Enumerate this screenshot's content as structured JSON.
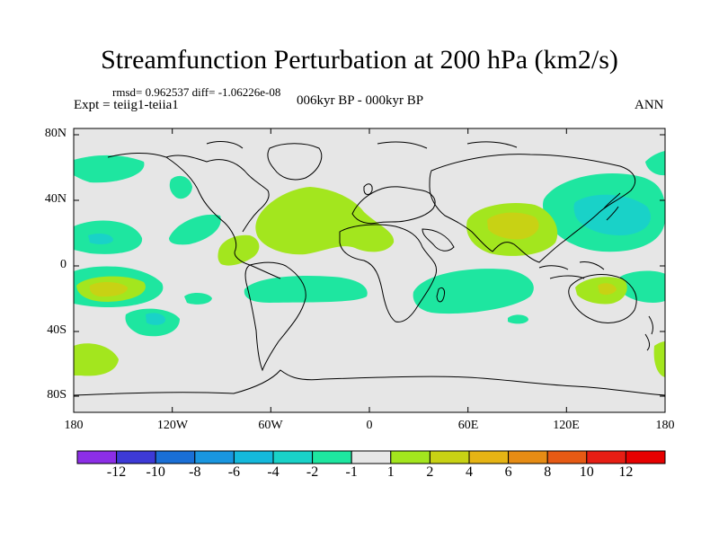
{
  "title": "Streamfunction Perturbation at 200 hPa (km2/s)",
  "stats": "rmsd= 0.962537 diff= -1.06226e-08",
  "experiment": "Expt = teiig1-teiia1",
  "period": "006kyr BP - 000kyr BP",
  "season": "ANN",
  "lat_labels": [
    "80N",
    "40N",
    "0",
    "40S",
    "80S"
  ],
  "lon_labels": [
    "180",
    "120W",
    "60W",
    "0",
    "60E",
    "120E",
    "180"
  ],
  "colorbar": {
    "labels": [
      "-12",
      "-10",
      "-8",
      "-6",
      "-4",
      "-2",
      "-1",
      "1",
      "2",
      "4",
      "6",
      "8",
      "10",
      "12"
    ],
    "colors": [
      "#8c2ee6",
      "#3d3ad6",
      "#1a6fd6",
      "#1996e0",
      "#14b9dc",
      "#19d2c8",
      "#1ee6a0",
      "#e6e6e6",
      "#a3e61e",
      "#c8d214",
      "#e6b414",
      "#e68c14",
      "#e65a14",
      "#e61e14",
      "#e60000"
    ]
  },
  "colors": {
    "land_background": "#e6e6e6",
    "positive_1_2": "#a3e61e",
    "positive_2_4": "#c8d214",
    "negative_1_2": "#1ee6a0",
    "negative_2_4": "#19d2c8"
  }
}
